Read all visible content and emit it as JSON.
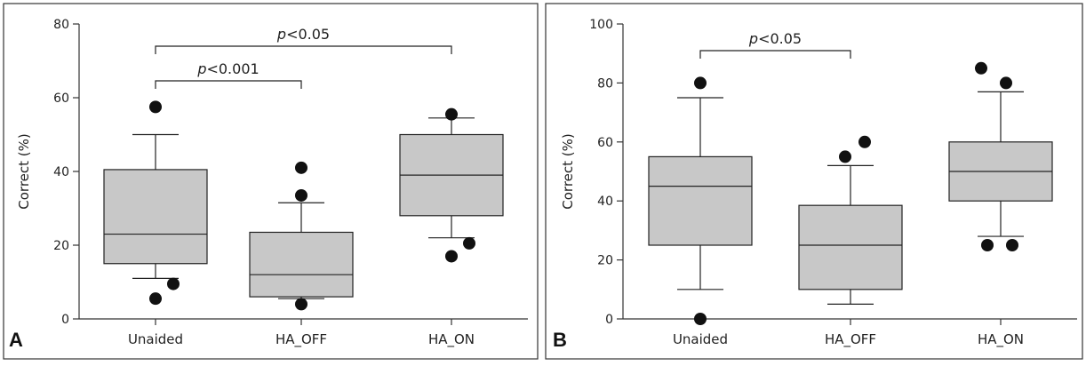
{
  "chart_data": [
    {
      "type": "box",
      "panel_label": "A",
      "ylabel": "Correct (%)",
      "ylim": [
        0,
        80
      ],
      "yticks": [
        "0",
        "20",
        "40",
        "60",
        "80"
      ],
      "categories": [
        "Unaided",
        "HA_OFF",
        "HA_ON"
      ],
      "boxes": [
        {
          "whisker_low": 11,
          "q1": 15,
          "median": 23,
          "q3": 40.5,
          "whisker_high": 50,
          "outliers": [
            57.5,
            9.5,
            5.5
          ]
        },
        {
          "whisker_low": 5.5,
          "q1": 6,
          "median": 12,
          "q3": 23.5,
          "whisker_high": 31.5,
          "outliers": [
            41,
            33.5,
            4
          ]
        },
        {
          "whisker_low": 22,
          "q1": 28,
          "median": 39,
          "q3": 50,
          "whisker_high": 54.5,
          "outliers": [
            55.5,
            20.5,
            17
          ]
        }
      ],
      "comparisons": [
        {
          "from": "Unaided",
          "to": "HA_ON",
          "p_symbol": "p",
          "p_rest": "<0.05"
        },
        {
          "from": "Unaided",
          "to": "HA_OFF",
          "p_symbol": "p",
          "p_rest": "<0.001"
        }
      ]
    },
    {
      "type": "box",
      "panel_label": "B",
      "ylabel": "Correct (%)",
      "ylim": [
        0,
        100
      ],
      "yticks": [
        "0",
        "20",
        "40",
        "60",
        "80",
        "100"
      ],
      "categories": [
        "Unaided",
        "HA_OFF",
        "HA_ON"
      ],
      "boxes": [
        {
          "whisker_low": 10,
          "q1": 25,
          "median": 45,
          "q3": 55,
          "whisker_high": 75,
          "outliers": [
            80,
            0
          ]
        },
        {
          "whisker_low": 5,
          "q1": 10,
          "median": 25,
          "q3": 38.5,
          "whisker_high": 52,
          "outliers": [
            60,
            55
          ]
        },
        {
          "whisker_low": 28,
          "q1": 40,
          "median": 50,
          "q3": 60,
          "whisker_high": 77,
          "outliers": [
            85,
            80,
            25,
            25
          ]
        }
      ],
      "comparisons": [
        {
          "from": "Unaided",
          "to": "HA_OFF",
          "p_symbol": "p",
          "p_rest": "<0.05"
        }
      ]
    }
  ]
}
